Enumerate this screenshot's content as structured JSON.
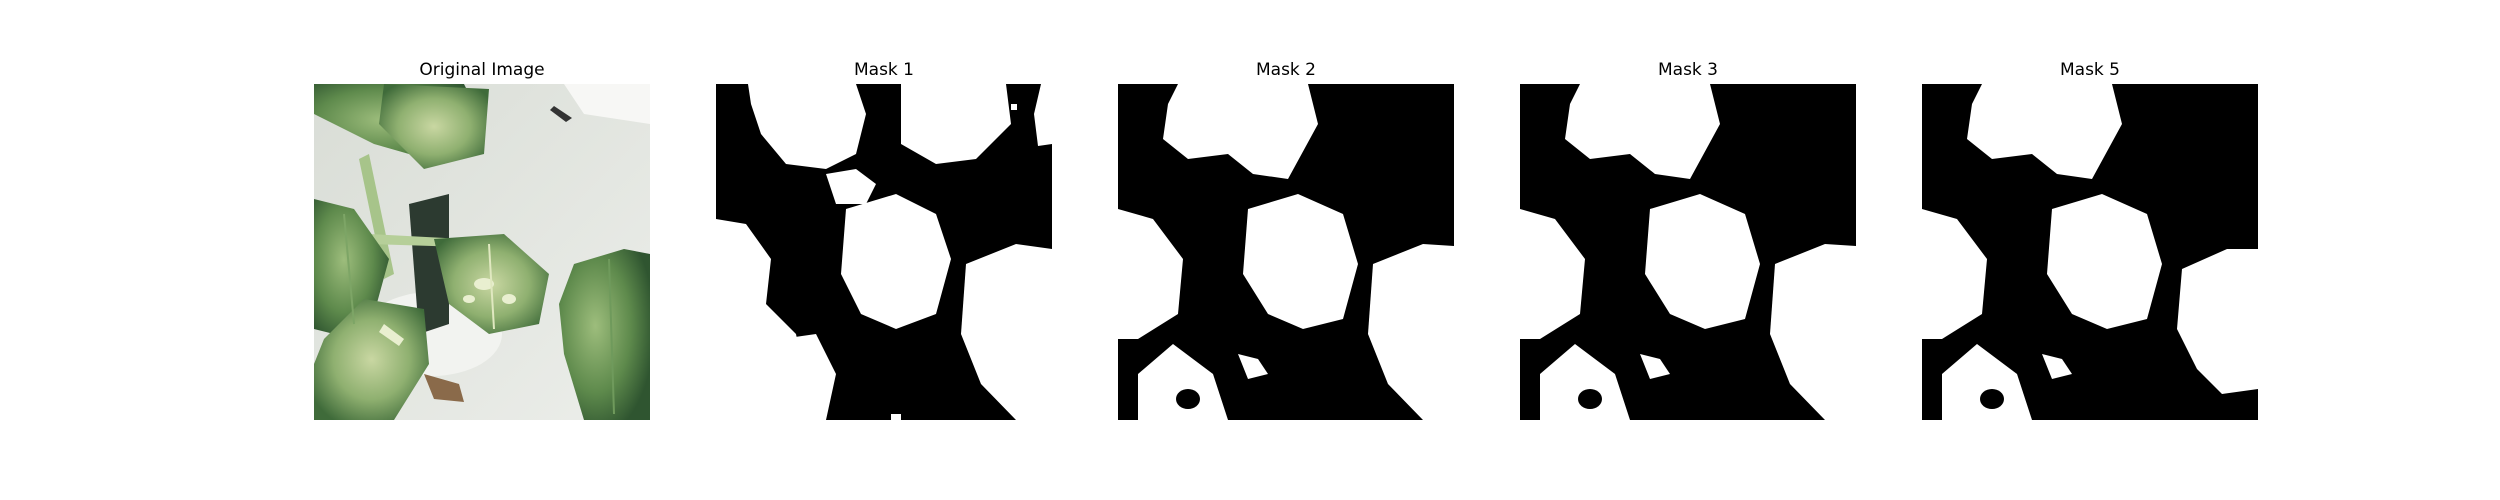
{
  "figure": {
    "panels": [
      {
        "title": "Original Image"
      },
      {
        "title": "Mask 1"
      },
      {
        "title": "Mask 2"
      },
      {
        "title": "Mask 3"
      },
      {
        "title": "Mask 5"
      }
    ]
  },
  "colors": {
    "background": "#ffffff",
    "mask_background": "#000000",
    "mask_foreground": "#ffffff",
    "leaf_dark": "#3f6b3a",
    "leaf_light": "#8fb070",
    "leaf_pale": "#c9d7a2",
    "table_surface": "#e6e9e4"
  }
}
